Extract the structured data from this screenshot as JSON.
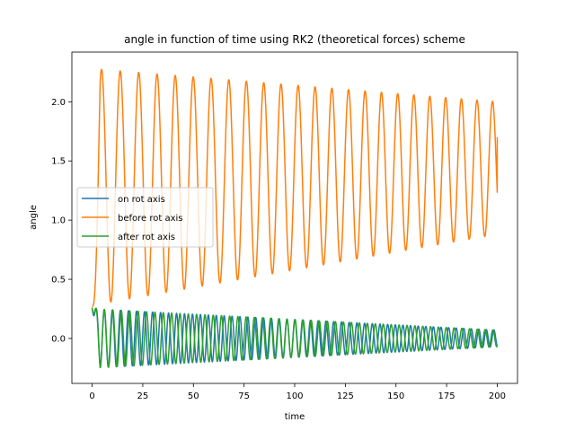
{
  "chart_data": {
    "type": "line",
    "title": "angle in function of time using RK2 (theoretical forces) scheme",
    "xlabel": "time",
    "ylabel": "angle",
    "xlim": [
      -10,
      210
    ],
    "ylim": [
      -0.38,
      2.42
    ],
    "xticks": [
      0,
      25,
      50,
      75,
      100,
      125,
      150,
      175,
      200
    ],
    "yticks": [
      0.0,
      0.5,
      1.0,
      1.5,
      2.0
    ],
    "ytick_labels": [
      "0.0",
      "0.5",
      "1.0",
      "1.5",
      "2.0"
    ],
    "grid": false,
    "legend_position": "center-left",
    "x_range": [
      0,
      200
    ],
    "series": [
      {
        "name": "on rot axis",
        "color": "#1f77b4",
        "start": 0.26,
        "center": [
          0.0,
          0.0
        ],
        "amplitude": [
          0.25,
          0.07
        ],
        "period": [
          4.0,
          3.85
        ],
        "phase": 0
      },
      {
        "name": "before rot axis",
        "color": "#ff7f0e",
        "start": 0.27,
        "center": [
          1.28,
          1.44
        ],
        "amplitude": [
          1.0,
          0.56
        ],
        "period": [
          9.3,
          8.4
        ],
        "phase": 0,
        "end_value": 1.7
      },
      {
        "name": "after rot axis",
        "color": "#2ca02c",
        "start": 0.26,
        "center": [
          0.0,
          0.0
        ],
        "amplitude": [
          0.25,
          0.07
        ],
        "period": [
          4.2,
          4.0
        ],
        "phase": 0.4
      }
    ]
  }
}
